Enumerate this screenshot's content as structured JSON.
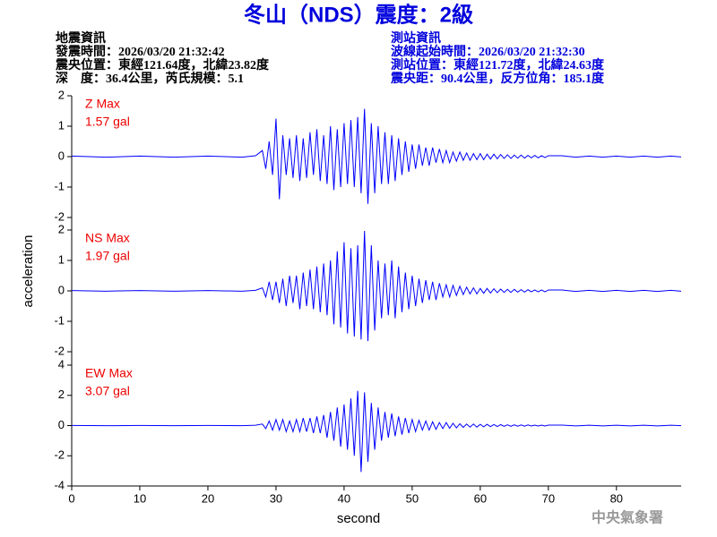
{
  "header": {
    "title": "冬山（NDS）震度：2級",
    "left": [
      "地震資訊",
      "發震時間：2026/03/20 21:32:42",
      "震央位置：東經121.64度，北緯23.82度",
      "深　度：36.4公里，芮氏規模：5.1"
    ],
    "right": [
      "測站資訊",
      "波線起始時間：2026/03/20 21:32:30",
      "測站位置：東經121.72度，北緯24.63度",
      "震央距：90.4公里，反方位角：185.1度"
    ],
    "ylabel": "acceleration",
    "xlabel": "second",
    "footer": "中央氣象署"
  },
  "chart_data": [
    {
      "type": "line",
      "label": "Z Max",
      "max_label": "1.57 gal",
      "ylim": [
        -2,
        2
      ],
      "yticks": [
        2,
        1,
        0,
        -1,
        -2
      ],
      "xlim": [
        0,
        89.5
      ],
      "x": [
        0,
        5,
        10,
        15,
        20,
        25,
        27,
        28,
        28.5,
        29,
        29.5,
        30,
        30.5,
        31,
        31.5,
        32,
        32.5,
        33,
        33.5,
        34,
        34.5,
        35,
        35.5,
        36,
        36.5,
        37,
        37.5,
        38,
        38.5,
        39,
        39.5,
        40,
        40.5,
        41,
        41.5,
        42,
        42.5,
        43,
        43.5,
        44,
        44.5,
        45,
        45.5,
        46,
        46.5,
        47,
        47.5,
        48,
        48.5,
        49,
        49.5,
        50,
        50.5,
        51,
        51.5,
        52,
        52.5,
        53,
        53.5,
        54,
        54.5,
        55,
        55.5,
        56,
        56.5,
        57,
        57.5,
        58,
        58.5,
        59,
        59.5,
        60,
        60.5,
        61,
        61.5,
        62,
        62.5,
        63,
        63.5,
        64,
        64.5,
        65,
        65.5,
        66,
        66.5,
        67,
        67.5,
        68,
        68.5,
        69,
        69.5,
        70,
        72,
        74,
        76,
        78,
        80,
        82,
        84,
        86,
        88,
        89.5
      ],
      "series": [
        {
          "color": "#0000ff",
          "values": [
            0.02,
            -0.02,
            0.02,
            -0.02,
            0.02,
            -0.02,
            0.03,
            0.2,
            -0.4,
            0.5,
            -0.6,
            1.25,
            -1.4,
            0.7,
            -0.6,
            0.6,
            -0.7,
            0.7,
            -0.8,
            0.6,
            -0.7,
            0.8,
            -0.6,
            0.9,
            -0.8,
            0.7,
            -0.9,
            1.0,
            -1.1,
            0.9,
            -1.0,
            1.1,
            -0.9,
            1.2,
            -1.0,
            1.3,
            -1.2,
            1.57,
            -1.55,
            1.1,
            -1.2,
            1.0,
            -0.9,
            0.8,
            -0.9,
            0.7,
            -0.8,
            0.6,
            -0.6,
            0.5,
            -0.5,
            0.4,
            -0.4,
            0.4,
            -0.3,
            0.3,
            -0.3,
            0.3,
            -0.2,
            0.25,
            -0.2,
            0.2,
            -0.2,
            0.15,
            -0.15,
            0.15,
            -0.12,
            0.12,
            -0.12,
            0.1,
            -0.1,
            0.1,
            -0.1,
            0.08,
            -0.08,
            0.08,
            -0.07,
            0.07,
            -0.06,
            0.06,
            -0.06,
            0.05,
            -0.05,
            0.05,
            -0.05,
            0.04,
            -0.04,
            0.04,
            -0.04,
            0.03,
            -0.03,
            0.03,
            0.03,
            -0.02,
            0.02,
            -0.02,
            0.02,
            -0.02,
            0.02,
            -0.02,
            0.02,
            -0.01
          ]
        }
      ]
    },
    {
      "type": "line",
      "label": "NS Max",
      "max_label": "1.97 gal",
      "ylim": [
        -2,
        2
      ],
      "yticks": [
        2,
        1,
        0,
        -1,
        -2
      ],
      "xlim": [
        0,
        89.5
      ],
      "x": [
        0,
        5,
        10,
        15,
        20,
        25,
        27,
        28,
        28.5,
        29,
        29.5,
        30,
        30.5,
        31,
        31.5,
        32,
        32.5,
        33,
        33.5,
        34,
        34.5,
        35,
        35.5,
        36,
        36.5,
        37,
        37.5,
        38,
        38.5,
        39,
        39.5,
        40,
        40.5,
        41,
        41.5,
        42,
        42.5,
        43,
        43.5,
        44,
        44.5,
        45,
        45.5,
        46,
        46.5,
        47,
        47.5,
        48,
        48.5,
        49,
        49.5,
        50,
        50.5,
        51,
        51.5,
        52,
        52.5,
        53,
        53.5,
        54,
        54.5,
        55,
        55.5,
        56,
        56.5,
        57,
        57.5,
        58,
        58.5,
        59,
        59.5,
        60,
        60.5,
        61,
        61.5,
        62,
        62.5,
        63,
        63.5,
        64,
        64.5,
        65,
        65.5,
        66,
        66.5,
        67,
        67.5,
        68,
        68.5,
        69,
        69.5,
        70,
        72,
        74,
        76,
        78,
        80,
        82,
        84,
        86,
        88,
        89.5
      ],
      "series": [
        {
          "color": "#0000ff",
          "values": [
            0.01,
            -0.01,
            0.01,
            -0.01,
            0.01,
            -0.01,
            0.02,
            0.1,
            -0.2,
            0.3,
            -0.3,
            0.3,
            -0.4,
            0.4,
            -0.5,
            0.5,
            -0.4,
            0.5,
            -0.6,
            0.6,
            -0.5,
            0.7,
            -0.6,
            0.8,
            -0.7,
            0.9,
            -0.8,
            1.0,
            -1.1,
            1.3,
            -1.2,
            1.6,
            -1.4,
            1.4,
            -1.5,
            1.5,
            -1.6,
            1.97,
            -1.65,
            1.5,
            -1.3,
            1.0,
            -0.9,
            0.9,
            -0.8,
            1.0,
            -0.9,
            0.8,
            -0.7,
            0.6,
            -0.6,
            0.5,
            -0.5,
            0.4,
            -0.4,
            0.35,
            -0.3,
            0.3,
            -0.3,
            0.25,
            -0.2,
            0.2,
            -0.2,
            0.18,
            -0.15,
            0.15,
            -0.12,
            0.12,
            -0.1,
            0.1,
            -0.1,
            0.08,
            -0.08,
            0.08,
            -0.07,
            0.07,
            -0.06,
            0.06,
            -0.05,
            0.05,
            -0.05,
            0.05,
            -0.04,
            0.04,
            -0.04,
            0.04,
            -0.03,
            0.03,
            -0.03,
            0.03,
            -0.03,
            0.03,
            0.03,
            -0.02,
            0.02,
            -0.02,
            0.02,
            -0.02,
            0.02,
            -0.02,
            0.02,
            -0.01
          ]
        }
      ]
    },
    {
      "type": "line",
      "label": "EW Max",
      "max_label": "3.07 gal",
      "ylim": [
        -4,
        4
      ],
      "yticks": [
        4,
        2,
        0,
        -2,
        -4
      ],
      "xlim": [
        0,
        89.5
      ],
      "xticks": [
        0,
        10,
        20,
        30,
        40,
        50,
        60,
        70,
        80
      ],
      "x": [
        0,
        5,
        10,
        15,
        20,
        25,
        27,
        28,
        28.5,
        29,
        29.5,
        30,
        30.5,
        31,
        31.5,
        32,
        32.5,
        33,
        33.5,
        34,
        34.5,
        35,
        35.5,
        36,
        36.5,
        37,
        37.5,
        38,
        38.5,
        39,
        39.5,
        40,
        40.5,
        41,
        41.5,
        42,
        42.5,
        43,
        43.5,
        44,
        44.5,
        45,
        45.5,
        46,
        46.5,
        47,
        47.5,
        48,
        48.5,
        49,
        49.5,
        50,
        50.5,
        51,
        51.5,
        52,
        52.5,
        53,
        53.5,
        54,
        54.5,
        55,
        55.5,
        56,
        56.5,
        57,
        57.5,
        58,
        58.5,
        59,
        59.5,
        60,
        60.5,
        61,
        61.5,
        62,
        62.5,
        63,
        63.5,
        64,
        64.5,
        65,
        65.5,
        66,
        66.5,
        67,
        67.5,
        68,
        68.5,
        69,
        69.5,
        70,
        72,
        74,
        76,
        78,
        80,
        82,
        84,
        86,
        88,
        89.5
      ],
      "series": [
        {
          "color": "#0000ff",
          "values": [
            0.01,
            -0.01,
            0.01,
            -0.01,
            0.01,
            -0.01,
            0.02,
            0.1,
            -0.2,
            0.3,
            -0.3,
            0.4,
            -0.3,
            0.4,
            -0.4,
            0.3,
            -0.4,
            0.4,
            -0.4,
            0.5,
            -0.4,
            0.5,
            -0.5,
            0.6,
            -0.5,
            0.7,
            -0.8,
            0.9,
            -1.0,
            1.2,
            -1.4,
            1.4,
            -1.6,
            1.8,
            -2.0,
            2.3,
            -3.07,
            2.2,
            -2.4,
            1.5,
            -1.6,
            1.2,
            -1.0,
            0.9,
            -0.8,
            0.8,
            -0.7,
            0.6,
            -0.6,
            0.5,
            -0.5,
            0.4,
            -0.4,
            0.35,
            -0.3,
            0.3,
            -0.3,
            0.25,
            -0.25,
            0.2,
            -0.2,
            0.2,
            -0.18,
            0.15,
            -0.15,
            0.12,
            -0.12,
            0.1,
            -0.1,
            0.1,
            -0.1,
            0.08,
            -0.08,
            0.08,
            -0.07,
            0.07,
            -0.06,
            0.06,
            -0.05,
            0.05,
            -0.05,
            0.05,
            -0.04,
            0.04,
            -0.04,
            0.04,
            -0.03,
            0.03,
            -0.03,
            0.03,
            -0.03,
            0.03,
            0.03,
            -0.02,
            0.02,
            -0.02,
            0.02,
            -0.02,
            0.02,
            -0.02,
            0.02,
            -0.01
          ]
        }
      ]
    }
  ]
}
